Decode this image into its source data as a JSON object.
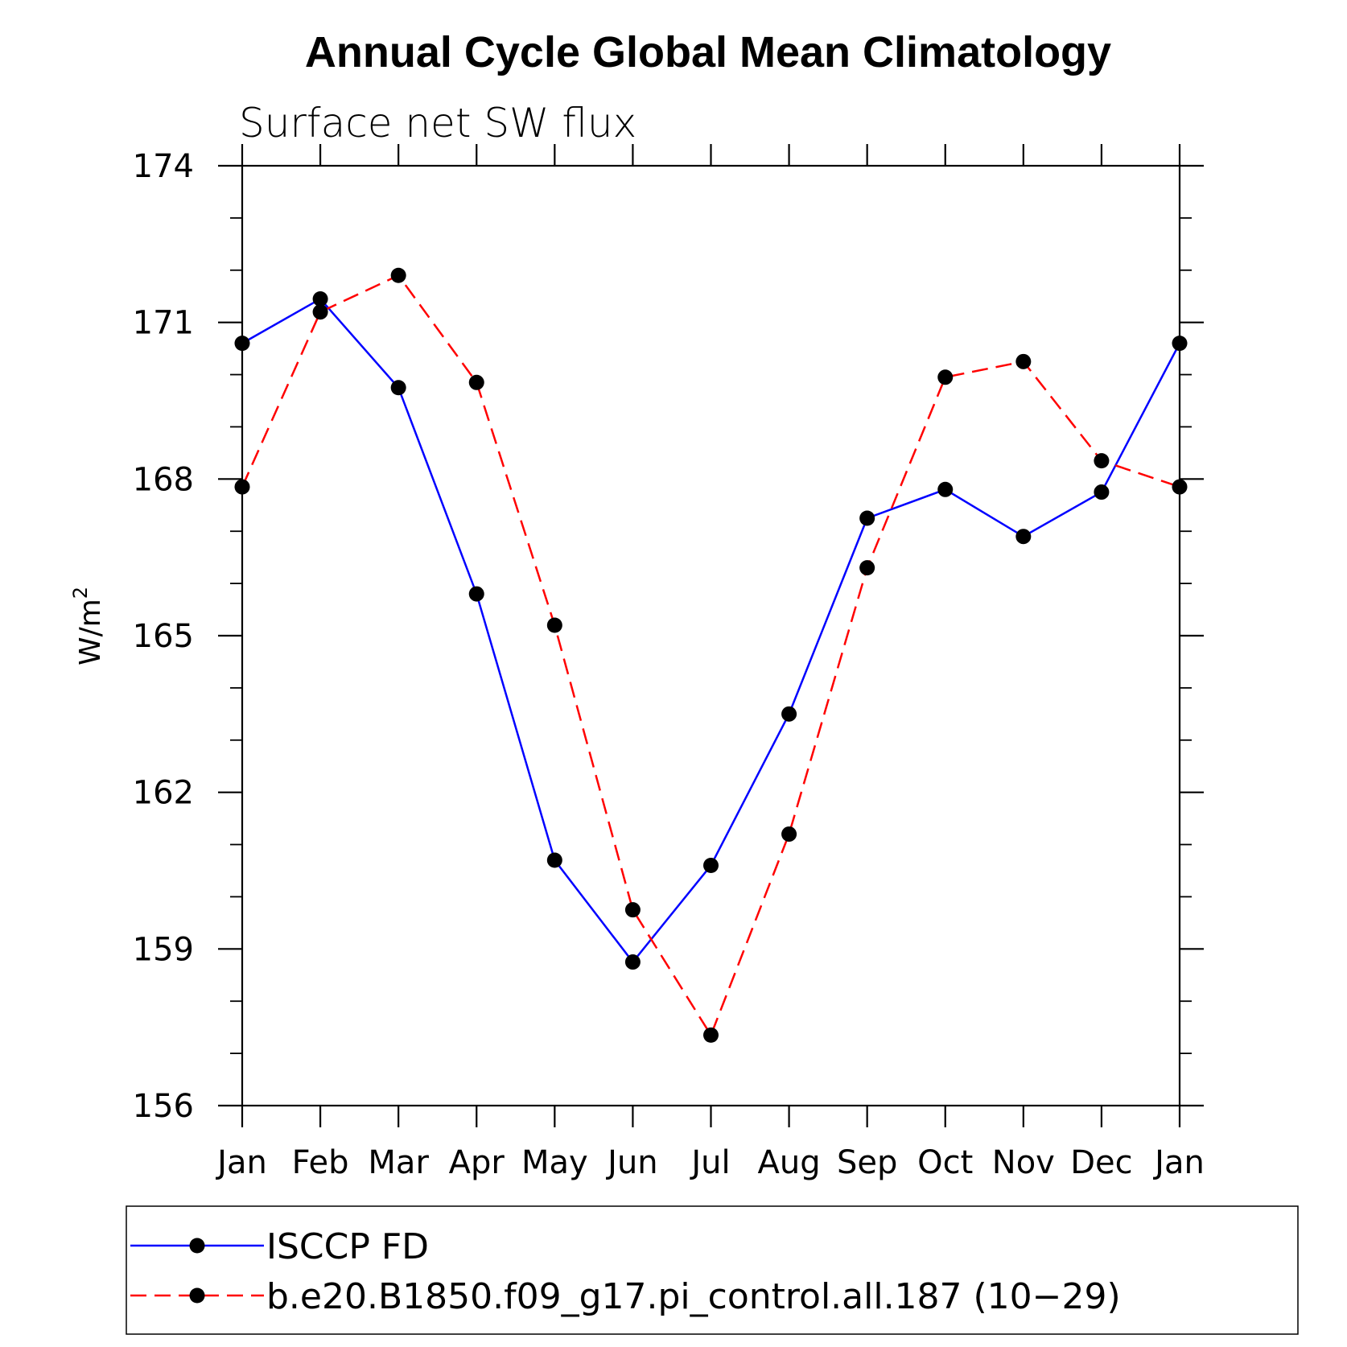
{
  "chart_data": {
    "type": "line",
    "title": "Annual Cycle Global Mean Climatology",
    "subtitle": "Surface net SW flux",
    "ylabel": "W/m",
    "ylabel_sup": "2",
    "ylim": [
      156,
      174
    ],
    "yticks": [
      156,
      159,
      162,
      165,
      168,
      171,
      174
    ],
    "categories": [
      "Jan",
      "Feb",
      "Mar",
      "Apr",
      "May",
      "Jun",
      "Jul",
      "Aug",
      "Sep",
      "Oct",
      "Nov",
      "Dec",
      "Jan"
    ],
    "series": [
      {
        "name": "ISCCP FD",
        "color": "#0000ff",
        "dash": "solid",
        "values": [
          170.6,
          171.45,
          169.75,
          165.8,
          160.7,
          158.75,
          160.6,
          163.5,
          167.25,
          167.8,
          166.9,
          167.75,
          170.6
        ]
      },
      {
        "name": "b.e20.B1850.f09_g17.pi_control.all.187 (10−29)",
        "color": "#ff0000",
        "dash": "dashed",
        "values": [
          167.85,
          171.2,
          171.9,
          169.85,
          165.2,
          159.75,
          157.35,
          161.2,
          166.3,
          169.95,
          170.25,
          168.35,
          167.85
        ]
      }
    ],
    "legend_position": "bottom"
  }
}
